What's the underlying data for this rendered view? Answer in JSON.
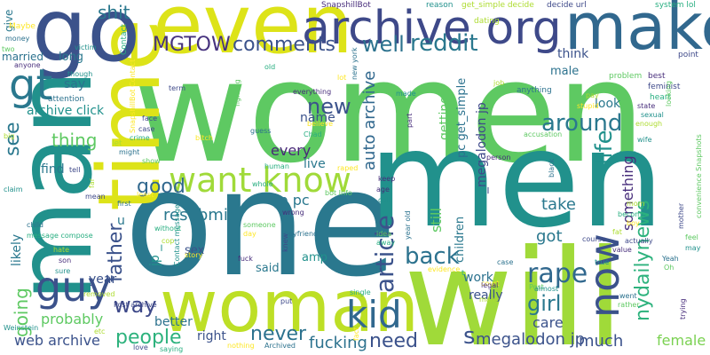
{
  "words": [
    {
      "text": "women",
      "color": "#5ec962"
    },
    {
      "text": "one",
      "color": "#2a788e"
    },
    {
      "text": "men",
      "color": "#21918c"
    },
    {
      "text": "will",
      "color": "#a0da39"
    },
    {
      "text": "man",
      "color": "#21918c"
    },
    {
      "text": "time",
      "color": "#dde318"
    },
    {
      "text": "woman",
      "color": "#bddf26"
    },
    {
      "text": "go",
      "color": "#3b528b"
    },
    {
      "text": "even",
      "color": "#dde318"
    },
    {
      "text": "make",
      "color": "#31688e"
    },
    {
      "text": "archive org",
      "color": "#3e4989"
    },
    {
      "text": "want know",
      "color": "#a0da39"
    },
    {
      "text": "kid",
      "color": "#31688e"
    },
    {
      "text": "guy",
      "color": "#3b528b"
    },
    {
      "text": "gt",
      "color": "#2a788e"
    },
    {
      "text": "now",
      "color": "#3b528b"
    },
    {
      "text": "rape",
      "color": "#31688e"
    },
    {
      "text": "MGTOW",
      "color": "#46327e"
    },
    {
      "text": "comments",
      "color": "#3b528b"
    },
    {
      "text": "well",
      "color": "#2c728e"
    },
    {
      "text": "reddit",
      "color": "#2a788e"
    },
    {
      "text": "article",
      "color": "#3b528b"
    },
    {
      "text": "back",
      "color": "#2c728e"
    },
    {
      "text": "around",
      "color": "#2a788e"
    },
    {
      "text": "life",
      "color": "#21918c"
    },
    {
      "text": "people",
      "color": "#2db27d"
    },
    {
      "text": "way",
      "color": "#3e4989"
    },
    {
      "text": "new",
      "color": "#3b528b"
    },
    {
      "text": "auto archive",
      "color": "#31688e"
    },
    {
      "text": "father",
      "color": "#3b528b"
    },
    {
      "text": "good",
      "color": "#31688e"
    },
    {
      "text": "girl",
      "color": "#2a788e"
    },
    {
      "text": "need",
      "color": "#3b528b"
    },
    {
      "text": "never",
      "color": "#2c728e"
    },
    {
      "text": "shit",
      "color": "#2a788e"
    },
    {
      "text": "fucking",
      "color": "#2c728e"
    },
    {
      "text": "going",
      "color": "#5ec962"
    },
    {
      "text": "thing",
      "color": "#5ec962"
    },
    {
      "text": "see",
      "color": "#2a788e"
    },
    {
      "text": "resubmit",
      "color": "#2a788e"
    },
    {
      "text": "nydailynews",
      "color": "#2db27d"
    },
    {
      "text": "something",
      "color": "#472d7b"
    },
    {
      "text": "much",
      "color": "#3b528b"
    },
    {
      "text": "web archive",
      "color": "#3b528b"
    },
    {
      "text": "megalodon jp",
      "color": "#3b528b"
    },
    {
      "text": "every",
      "color": "#482878"
    },
    {
      "text": "s",
      "color": "#3b528b"
    },
    {
      "text": "archive click",
      "color": "#21918c"
    },
    {
      "text": "live",
      "color": "#2a788e"
    },
    {
      "text": "take",
      "color": "#2a788e"
    },
    {
      "text": "got",
      "color": "#2a788e"
    },
    {
      "text": "probably",
      "color": "#5ec962"
    },
    {
      "text": "right",
      "color": "#3b528b"
    },
    {
      "text": "really",
      "color": "#3b528b"
    },
    {
      "text": "still",
      "color": "#5ec962"
    },
    {
      "text": "care",
      "color": "#3b528b"
    },
    {
      "text": "female",
      "color": "#7ad151"
    },
    {
      "text": "think",
      "color": "#3b528b"
    },
    {
      "text": "look",
      "color": "#2a788e"
    },
    {
      "text": "male",
      "color": "#2c728e"
    },
    {
      "text": "say",
      "color": "#2c728e"
    },
    {
      "text": "married",
      "color": "#2c728e"
    },
    {
      "text": "long",
      "color": "#2a788e"
    },
    {
      "text": "getting",
      "color": "#5ec962"
    },
    {
      "text": "jp pc",
      "color": "#2a788e"
    },
    {
      "text": "pc get_simple",
      "color": "#2c728e"
    },
    {
      "text": "_megalodon jp",
      "color": "#3e4989"
    },
    {
      "text": "year",
      "color": "#3b528b"
    },
    {
      "text": "better",
      "color": "#2c728e"
    },
    {
      "text": "work",
      "color": "#2c728e"
    },
    {
      "text": "jp _",
      "color": "#21918c"
    },
    {
      "text": "find",
      "color": "#2a788e"
    },
    {
      "text": "likely",
      "color": "#2a788e"
    },
    {
      "text": "give",
      "color": "#2a788e"
    },
    {
      "text": "children",
      "color": "#2a788e"
    },
    {
      "text": "sex",
      "color": "#3b528b"
    },
    {
      "text": "amp",
      "color": "#21918c"
    },
    {
      "text": "said",
      "color": "#2a788e"
    },
    {
      "text": "u",
      "color": "#2a788e"
    },
    {
      "text": "name",
      "color": "#3b528b"
    }
  ],
  "small_words": [
    "SnapshillBot",
    "reason",
    "get_simple decide",
    "decide url",
    "system lol",
    "Maybe",
    "money",
    "two",
    "anyone",
    "victim",
    "dating",
    "point",
    "Contact",
    "SnapshillBot Contact",
    "new york",
    "problem",
    "best",
    "though",
    "job",
    "term",
    "old",
    "lot",
    "attention",
    "fighting",
    "everything",
    "made",
    "pay",
    "feminist",
    "heart",
    "stupid",
    "anything",
    "looking",
    "state",
    "sexual",
    "enough",
    "face",
    "Chad",
    "believe",
    "guess",
    "accusation",
    "part",
    "wife",
    "let",
    "case",
    "crime",
    "bitch",
    "might",
    "show",
    "person",
    "hard",
    "big",
    "tell",
    "human",
    "raped",
    "black",
    "convenience Snapshots",
    "keep",
    "claim",
    "far",
    "mean",
    "whole",
    "least",
    "first",
    "bot Info",
    "age",
    "coll",
    "mom",
    "mother",
    "become",
    "boy",
    "child",
    "someone",
    "wrong",
    "may",
    "fat",
    "actually",
    "message compose",
    "story",
    "boyfriend",
    "feel",
    "value",
    "Contact message",
    "hate",
    "course",
    "without",
    "day",
    "year old",
    "idea",
    "son",
    "sure",
    "cop",
    "knew",
    "away",
    "evidence",
    "Yeah",
    "Oh",
    "fuck",
    "true",
    "removed",
    "put",
    "t",
    "court",
    "case",
    "Post",
    "legal",
    "almost",
    "many",
    "Post archive",
    "single",
    "fact",
    "went",
    "rather",
    "trying",
    "Weinstein",
    "etc",
    "love",
    "saying",
    "nothing",
    "Archived"
  ],
  "small_colors": [
    "#472d7b",
    "#3e4989",
    "#2c728e",
    "#21918c",
    "#28ae80",
    "#5ec962",
    "#addc30",
    "#fde725"
  ]
}
